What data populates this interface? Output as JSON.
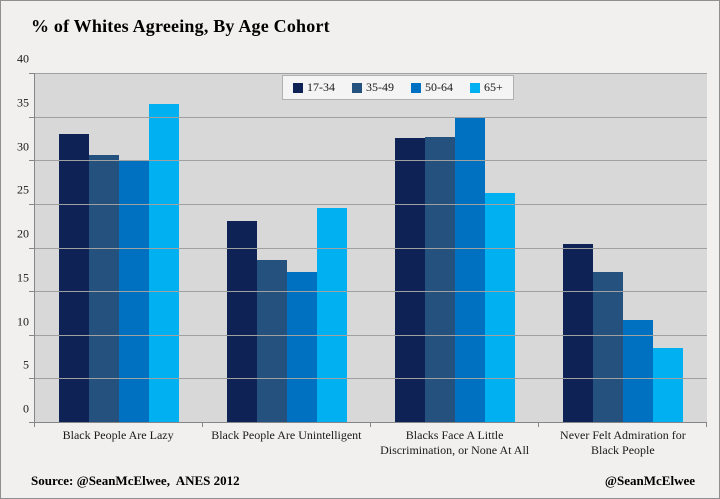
{
  "title": "% of Whites Agreeing, By Age Cohort",
  "footer": {
    "source": "Source: @SeanMcElwee,  ANES 2012",
    "credit": "@SeanMcElwee"
  },
  "colors": {
    "page_background": "#f2f0ee",
    "plot_background": "#d8d8d8",
    "gridline": "#a0a0a0",
    "axis": "#868686",
    "series_17_34": "#0e2255",
    "series_35_49": "#24517d",
    "series_50_64": "#0071c0",
    "series_65_plus": "#00b0f0"
  },
  "chart_data": {
    "type": "bar",
    "title": "% of Whites Agreeing, By Age Cohort",
    "categories": [
      "Black People Are Lazy",
      "Black People Are Unintelligent",
      "Blacks Face A Little Discrimination, or None At All",
      "Never Felt Admiration for Black People"
    ],
    "category_label_lines": [
      [
        "Black People Are Lazy"
      ],
      [
        "Black People Are Unintelligent"
      ],
      [
        "Blacks Face A Little",
        "Discrimination, or None At All"
      ],
      [
        "Never Felt Admiration for",
        "Black People"
      ]
    ],
    "series": [
      {
        "name": "17-34",
        "color": "#0e2255",
        "values": [
          33.0,
          23.0,
          32.5,
          20.4
        ]
      },
      {
        "name": "35-49",
        "color": "#24517d",
        "values": [
          30.6,
          18.6,
          32.7,
          17.2
        ]
      },
      {
        "name": "50-64",
        "color": "#0071c0",
        "values": [
          30.0,
          17.2,
          34.8,
          11.7
        ]
      },
      {
        "name": "65+",
        "color": "#00b0f0",
        "values": [
          36.5,
          24.5,
          26.3,
          8.5
        ]
      }
    ],
    "xlabel": "",
    "ylabel": "",
    "ylim": [
      0,
      40
    ],
    "yticks": [
      0,
      5,
      10,
      15,
      20,
      25,
      30,
      35,
      40
    ],
    "grid": true,
    "legend_position": "top-center",
    "source_note": "Source: @SeanMcElwee,  ANES 2012"
  }
}
